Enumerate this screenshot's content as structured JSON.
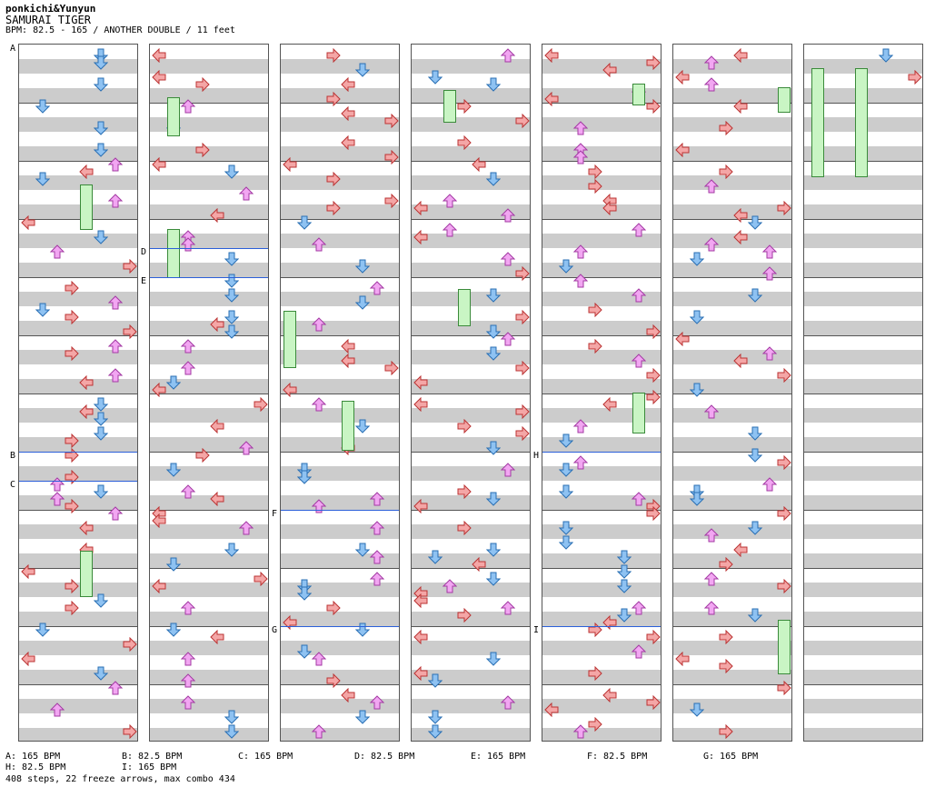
{
  "header": {
    "artist": "ponkichi&Yunyun",
    "title": "SAMURAI TIGER",
    "info": "BPM: 82.5 - 165 / ANOTHER DOUBLE / 11 feet"
  },
  "colors": {
    "left": "#f4a6a6",
    "down": "#8ec2f2",
    "up": "#f2a6f2",
    "right": "#f4a6a6",
    "freeze": "#c9f5c4",
    "measure": "#555555",
    "bpm_line": "#2b5fd9"
  },
  "bpm_markers": [
    {
      "label": "A",
      "bpm": "165 BPM"
    },
    {
      "label": "B",
      "bpm": "82.5 BPM"
    },
    {
      "label": "C",
      "bpm": "165 BPM"
    },
    {
      "label": "D",
      "bpm": "82.5 BPM"
    },
    {
      "label": "E",
      "bpm": "165 BPM"
    },
    {
      "label": "F",
      "bpm": "82.5 BPM"
    },
    {
      "label": "G",
      "bpm": "165 BPM"
    },
    {
      "label": "H",
      "bpm": "82.5 BPM"
    },
    {
      "label": "I",
      "bpm": "165 BPM"
    }
  ],
  "legend": [
    "A: 165 BPM",
    "B: 82.5 BPM",
    "C: 165 BPM",
    "D: 82.5 BPM",
    "E: 165 BPM",
    "F: 82.5 BPM",
    "G: 165 BPM",
    "H: 82.5 BPM",
    "I: 165 BPM"
  ],
  "stats": "408 steps, 22 freeze arrows, max combo 434"
}
